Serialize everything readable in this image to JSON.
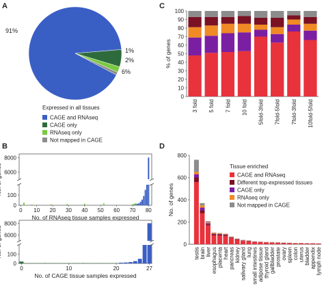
{
  "panel_labels": {
    "a": "A",
    "b": "B",
    "c": "C",
    "d": "D"
  },
  "colors": {
    "blue": "#3a5fc4",
    "dark_green": "#2e6b3c",
    "light_green": "#7ac943",
    "gray": "#8c8c8c",
    "red": "#e8323c",
    "dark_red": "#7a1224",
    "purple": "#7b1fa2",
    "orange": "#f08a24"
  },
  "chart_data": [
    {
      "panel": "A",
      "type": "pie",
      "legend_title": "Expressed in all tissues",
      "labels": [
        "CAGE and RNAseq",
        "CAGE only",
        "RNAseq only",
        "Not mapped in CAGE"
      ],
      "values": [
        91,
        6,
        2,
        1
      ],
      "slice_labels": [
        "91%",
        "6%",
        "2%",
        "1%"
      ],
      "colors": [
        "#3a5fc4",
        "#2e6b3c",
        "#7ac943",
        "#8c8c8c"
      ]
    },
    {
      "panel": "B-top",
      "type": "bar",
      "ylabel": "No. of genes",
      "xlabel": "No. of RNAseq tissue samples expressed",
      "xlim": [
        -1,
        82
      ],
      "xticks": [
        "0",
        "10",
        "20",
        "30",
        "40",
        "50",
        "60",
        "70",
        "80"
      ],
      "yticks": [
        "0",
        "100",
        "6000",
        "8000"
      ],
      "axis_break": true,
      "lower_ylim": [
        0,
        200
      ],
      "upper_ylim": [
        5000,
        8500
      ],
      "x": [
        1,
        2,
        3,
        4,
        5,
        6,
        7,
        8,
        9,
        10,
        11,
        12,
        13,
        14,
        15,
        16,
        17,
        18,
        19,
        20,
        21,
        22,
        23,
        24,
        25,
        26,
        27,
        28,
        29,
        30,
        31,
        32,
        33,
        34,
        35,
        36,
        37,
        38,
        39,
        40,
        41,
        42,
        43,
        44,
        45,
        46,
        47,
        48,
        49,
        50,
        51,
        52,
        53,
        54,
        55,
        56,
        57,
        58,
        59,
        60,
        61,
        62,
        63,
        64,
        65,
        66,
        67,
        68,
        69,
        70,
        71,
        72,
        73,
        74,
        75,
        76,
        77,
        78,
        79,
        80
      ],
      "series": [
        {
          "values": [
            0,
            25,
            0,
            0,
            0,
            0,
            8,
            0,
            0,
            0,
            0,
            0,
            0,
            0,
            0,
            0,
            0,
            0,
            10,
            0,
            0,
            0,
            0,
            0,
            0,
            0,
            0,
            0,
            12,
            0,
            0,
            0,
            0,
            0,
            0,
            0,
            0,
            0,
            0,
            15,
            0,
            0,
            0,
            0,
            0,
            0,
            0,
            0,
            0,
            0,
            0,
            18,
            0,
            0,
            0,
            0,
            0,
            0,
            0,
            0,
            0,
            0,
            0,
            0,
            0,
            0,
            0,
            0,
            0,
            10,
            15,
            20,
            15,
            12,
            10,
            8,
            6,
            4,
            3,
            2
          ],
          "colors": [
            "#7ac943"
          ]
        },
        {
          "values": [
            0,
            0,
            0,
            0,
            0,
            0,
            0,
            0,
            0,
            0,
            0,
            0,
            0,
            0,
            0,
            0,
            0,
            0,
            0,
            0,
            0,
            0,
            0,
            0,
            0,
            0,
            0,
            0,
            0,
            0,
            0,
            0,
            0,
            0,
            0,
            0,
            0,
            0,
            0,
            0,
            0,
            0,
            0,
            0,
            0,
            0,
            0,
            0,
            0,
            0,
            0,
            0,
            0,
            0,
            0,
            0,
            0,
            0,
            0,
            0,
            0,
            0,
            0,
            0,
            0,
            0,
            0,
            0,
            0,
            0,
            5,
            8,
            12,
            20,
            35,
            55,
            90,
            150,
            200,
            8000
          ],
          "colors": [
            "#3a5fc4"
          ]
        }
      ]
    },
    {
      "panel": "B-bottom",
      "type": "bar",
      "ylabel": "No. of genes",
      "xlabel": "No. of CAGE tissue samples expressed",
      "xlim": [
        -0.5,
        27.5
      ],
      "xticks": [
        "0",
        "10",
        "20",
        "27"
      ],
      "yticks": [
        "0",
        "100",
        "6000",
        "8000"
      ],
      "axis_break": true,
      "x": [
        0,
        1,
        2,
        3,
        4,
        5,
        6,
        7,
        8,
        9,
        10,
        11,
        12,
        13,
        14,
        15,
        16,
        17,
        18,
        19,
        20,
        21,
        22,
        23,
        24,
        25,
        26,
        27
      ],
      "series": [
        {
          "values": [
            20,
            3,
            3,
            3,
            3,
            4,
            3,
            3,
            3,
            3,
            3,
            3,
            3,
            4,
            3,
            3,
            3,
            3,
            3,
            3,
            3,
            4,
            4,
            4,
            4,
            4,
            3,
            3
          ],
          "colors": [
            "#2e6b3c"
          ]
        },
        {
          "values": [
            0,
            0,
            0,
            0,
            0,
            0,
            0,
            0,
            0,
            0,
            0,
            0,
            0,
            0,
            0,
            0,
            0,
            0,
            0,
            0,
            0,
            8,
            10,
            15,
            25,
            50,
            200,
            8000
          ],
          "colors": [
            "#3a5fc4"
          ]
        }
      ]
    },
    {
      "panel": "C",
      "type": "bar",
      "stacked": true,
      "ylabel": "% of genes",
      "ylim": [
        0,
        100
      ],
      "yticks": [
        "0",
        "10",
        "20",
        "30",
        "40",
        "50",
        "60",
        "70",
        "80",
        "90",
        "100"
      ],
      "categories": [
        "3 fold",
        "5 fold",
        "7 fold",
        "10 fold",
        "5fold-3fold",
        "7fold-5fold",
        "7fold-3fold",
        "10fold-5fold"
      ],
      "series": [
        {
          "name": "CAGE and RNAseq",
          "color": "#e8323c",
          "values": [
            48,
            51,
            52,
            53,
            70,
            63,
            76,
            66
          ]
        },
        {
          "name": "CAGE only",
          "color": "#7b1fa2",
          "values": [
            21,
            20,
            22,
            22,
            8,
            10,
            8,
            11
          ]
        },
        {
          "name": "RNAseq only",
          "color": "#f08a24",
          "values": [
            12,
            12,
            11,
            10,
            6,
            8,
            6,
            8
          ]
        },
        {
          "name": "Different top-expressed tissues",
          "color": "#7a1224",
          "values": [
            12,
            10,
            8,
            9,
            8,
            11,
            5,
            8
          ]
        },
        {
          "name": "Not mapped in CAGE",
          "color": "#8c8c8c",
          "values": [
            7,
            7,
            7,
            6,
            8,
            8,
            5,
            7
          ]
        }
      ]
    },
    {
      "panel": "D",
      "type": "bar",
      "stacked": true,
      "ylabel": "No. of genes",
      "ylim": [
        0,
        800
      ],
      "yticks": [
        "0",
        "200",
        "400",
        "600",
        "800"
      ],
      "legend_title": "Tissue enriched",
      "categories": [
        "testis",
        "brain",
        "liver",
        "esophagus",
        "placenta",
        "heart",
        "pancreas",
        "kidney",
        "salivary gland",
        "lung",
        "small intestines",
        "adipose tissue",
        "thyroid gland",
        "gallbladder",
        "prostate",
        "ovary",
        "spleen",
        "colon",
        "uterus",
        "bladder",
        "appendix",
        "lymph node"
      ],
      "series": [
        {
          "name": "CAGE and RNAseq",
          "color": "#e8323c",
          "values": [
            560,
            280,
            170,
            80,
            80,
            75,
            55,
            40,
            30,
            25,
            20,
            18,
            15,
            14,
            12,
            10,
            10,
            8,
            8,
            6,
            6,
            5
          ]
        },
        {
          "name": "Different top-expressed tissues",
          "color": "#7a1224",
          "values": [
            40,
            25,
            10,
            10,
            8,
            8,
            5,
            4,
            3,
            3,
            2,
            2,
            2,
            2,
            2,
            2,
            1,
            1,
            1,
            1,
            1,
            1
          ]
        },
        {
          "name": "CAGE only",
          "color": "#7b1fa2",
          "values": [
            30,
            25,
            10,
            5,
            5,
            5,
            3,
            3,
            2,
            2,
            2,
            1,
            1,
            1,
            1,
            1,
            1,
            1,
            1,
            1,
            1,
            1
          ]
        },
        {
          "name": "RNAseq only",
          "color": "#f08a24",
          "values": [
            20,
            20,
            8,
            8,
            7,
            6,
            5,
            3,
            3,
            3,
            2,
            2,
            2,
            2,
            2,
            2,
            1,
            1,
            1,
            1,
            1,
            1
          ]
        },
        {
          "name": "Not mapped in CAGE",
          "color": "#8c8c8c",
          "values": [
            110,
            20,
            10,
            3,
            2,
            2,
            2,
            2,
            2,
            2,
            1,
            1,
            1,
            1,
            1,
            1,
            1,
            1,
            1,
            1,
            1,
            1
          ]
        }
      ]
    }
  ]
}
